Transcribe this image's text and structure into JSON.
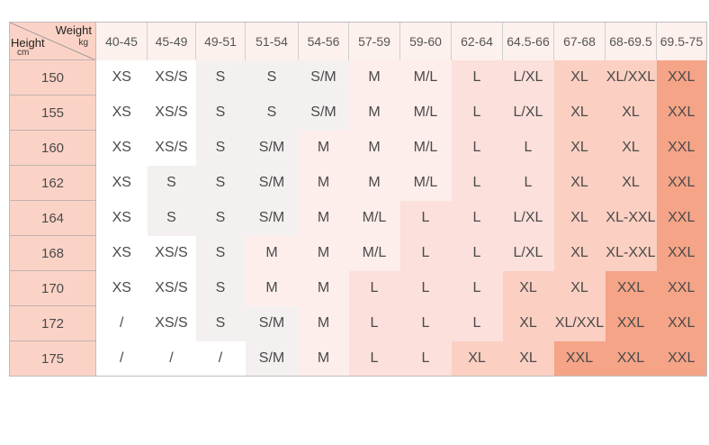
{
  "corner": {
    "weight_label": "Weight",
    "weight_unit": "kg",
    "height_label": "Height",
    "height_unit": "cm"
  },
  "weight_columns": [
    "40-45",
    "45-49",
    "49-51",
    "51-54",
    "54-56",
    "57-59",
    "59-60",
    "62-64",
    "64.5-66",
    "67-68",
    "68-69.5",
    "69.5-75"
  ],
  "rows": [
    {
      "height": "150",
      "sizes": [
        "XS",
        "XS/S",
        "S",
        "S",
        "S/M",
        "M",
        "M/L",
        "L",
        "L/XL",
        "XL",
        "XL/XXL",
        "XXL"
      ]
    },
    {
      "height": "155",
      "sizes": [
        "XS",
        "XS/S",
        "S",
        "S",
        "S/M",
        "M",
        "M/L",
        "L",
        "L/XL",
        "XL",
        "XL",
        "XXL"
      ]
    },
    {
      "height": "160",
      "sizes": [
        "XS",
        "XS/S",
        "S",
        "S/M",
        "M",
        "M",
        "M/L",
        "L",
        "L",
        "XL",
        "XL",
        "XXL"
      ]
    },
    {
      "height": "162",
      "sizes": [
        "XS",
        "S",
        "S",
        "S/M",
        "M",
        "M",
        "M/L",
        "L",
        "L",
        "XL",
        "XL",
        "XXL"
      ]
    },
    {
      "height": "164",
      "sizes": [
        "XS",
        "S",
        "S",
        "S/M",
        "M",
        "M/L",
        "L",
        "L",
        "L/XL",
        "XL",
        "XL-XXL",
        "XXL"
      ]
    },
    {
      "height": "168",
      "sizes": [
        "XS",
        "XS/S",
        "S",
        "M",
        "M",
        "M/L",
        "L",
        "L",
        "L/XL",
        "XL",
        "XL-XXL",
        "XXL"
      ]
    },
    {
      "height": "170",
      "sizes": [
        "XS",
        "XS/S",
        "S",
        "M",
        "M",
        "L",
        "L",
        "L",
        "XL",
        "XL",
        "XXL",
        "XXL"
      ]
    },
    {
      "height": "172",
      "sizes": [
        "/",
        "XS/S",
        "S",
        "S/M",
        "M",
        "L",
        "L",
        "L",
        "XL",
        "XL/XXL",
        "XXL",
        "XXL"
      ]
    },
    {
      "height": "175",
      "sizes": [
        "/",
        "/",
        "/",
        "S/M",
        "M",
        "L",
        "L",
        "XL",
        "XL",
        "XXL",
        "XXL",
        "XXL"
      ]
    }
  ],
  "size_colors": {
    "XS": "#ffffff",
    "/": "#ffffff",
    "XS/S": "#ffffff",
    "S": "#f4f0f0",
    "S/M": "#f4f0f0",
    "M": "#fdeeec",
    "M/L": "#fdeeec",
    "L": "#fce0db",
    "L/XL": "#fce0db",
    "XL": "#fbcfc2",
    "XL/XXL": "#fbcfc2",
    "XL-XXL": "#fbcfc2",
    "XXL": "#f5a487"
  }
}
